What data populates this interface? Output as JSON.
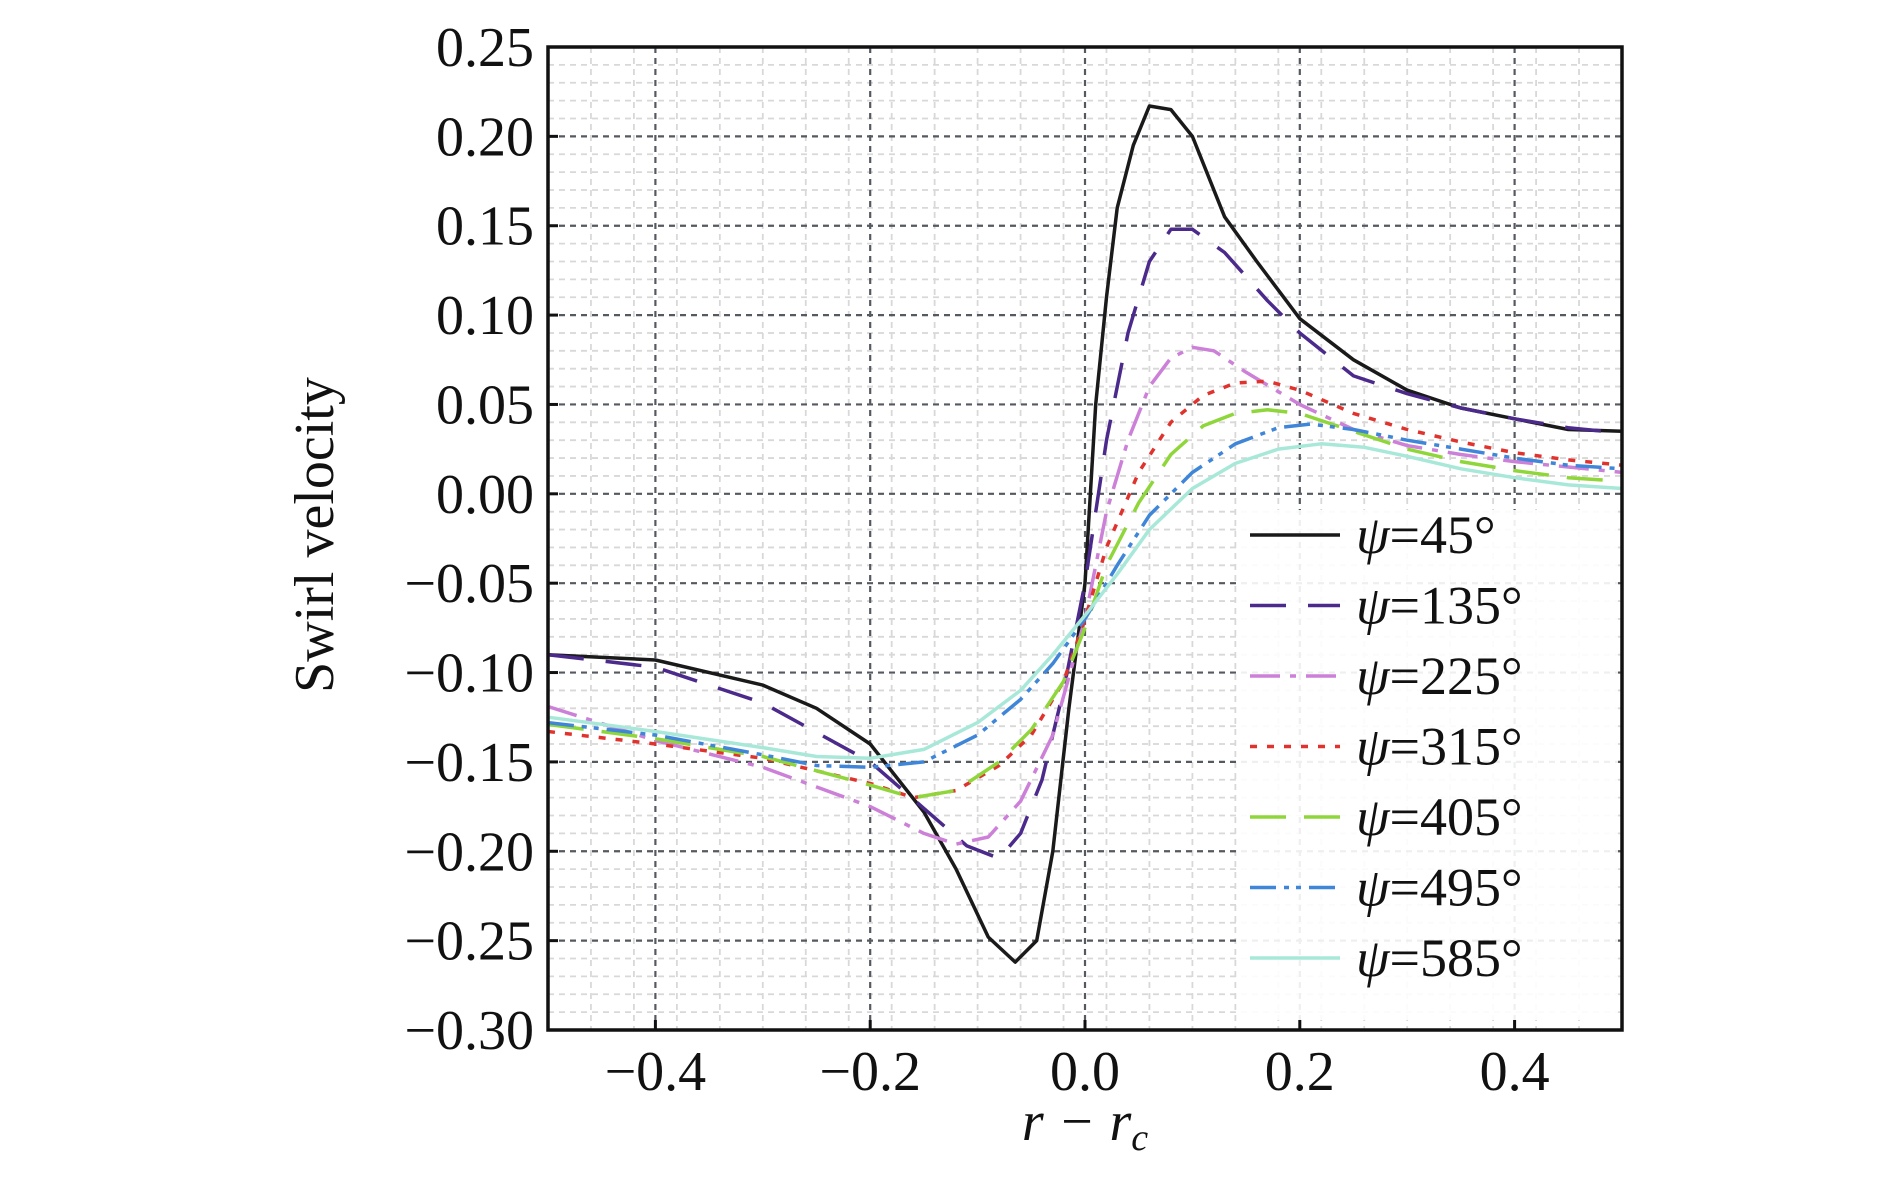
{
  "chart_data": {
    "type": "line",
    "title": "",
    "xlabel": "r − r",
    "xlabel_sub": "c",
    "ylabel": "Swirl velocity",
    "xlim": [
      -0.5,
      0.5
    ],
    "ylim": [
      -0.3,
      0.25
    ],
    "xticks": [
      -0.4,
      -0.2,
      0.0,
      0.2,
      0.4
    ],
    "xtick_labels": [
      "−0.4",
      "−0.2",
      "0.0",
      "0.2",
      "0.4"
    ],
    "yticks": [
      0.25,
      0.2,
      0.15,
      0.1,
      0.05,
      0.0,
      -0.05,
      -0.1,
      -0.15,
      -0.2,
      -0.25,
      -0.3
    ],
    "ytick_labels": [
      "0.25",
      "0.20",
      "0.15",
      "0.10",
      "0.05",
      "0.00",
      "−0.05",
      "−0.10",
      "−0.15",
      "−0.20",
      "−0.25",
      "−0.30"
    ],
    "grid": true,
    "legend_position": "lower-right",
    "series": [
      {
        "name": "ψ=45°",
        "symbol": "ψ",
        "label_rest": "=45°",
        "color": "#1a1a1a",
        "dash": "solid",
        "points": [
          [
            -0.5,
            -0.09
          ],
          [
            -0.4,
            -0.093
          ],
          [
            -0.3,
            -0.107
          ],
          [
            -0.25,
            -0.12
          ],
          [
            -0.2,
            -0.14
          ],
          [
            -0.15,
            -0.178
          ],
          [
            -0.12,
            -0.21
          ],
          [
            -0.09,
            -0.248
          ],
          [
            -0.065,
            -0.262
          ],
          [
            -0.045,
            -0.25
          ],
          [
            -0.03,
            -0.2
          ],
          [
            -0.015,
            -0.12
          ],
          [
            0.0,
            -0.05
          ],
          [
            0.01,
            0.05
          ],
          [
            0.02,
            0.11
          ],
          [
            0.03,
            0.16
          ],
          [
            0.045,
            0.195
          ],
          [
            0.06,
            0.217
          ],
          [
            0.08,
            0.215
          ],
          [
            0.1,
            0.2
          ],
          [
            0.13,
            0.155
          ],
          [
            0.16,
            0.13
          ],
          [
            0.2,
            0.098
          ],
          [
            0.25,
            0.075
          ],
          [
            0.3,
            0.058
          ],
          [
            0.35,
            0.048
          ],
          [
            0.4,
            0.042
          ],
          [
            0.45,
            0.036
          ],
          [
            0.5,
            0.035
          ]
        ]
      },
      {
        "name": "ψ=135°",
        "symbol": "ψ",
        "label_rest": "=135°",
        "color": "#4b2a8c",
        "dash": "36,22",
        "points": [
          [
            -0.5,
            -0.09
          ],
          [
            -0.4,
            -0.097
          ],
          [
            -0.3,
            -0.117
          ],
          [
            -0.2,
            -0.15
          ],
          [
            -0.15,
            -0.176
          ],
          [
            -0.11,
            -0.197
          ],
          [
            -0.08,
            -0.204
          ],
          [
            -0.06,
            -0.19
          ],
          [
            -0.04,
            -0.16
          ],
          [
            -0.02,
            -0.11
          ],
          [
            0.0,
            -0.05
          ],
          [
            0.02,
            0.03
          ],
          [
            0.04,
            0.09
          ],
          [
            0.06,
            0.13
          ],
          [
            0.08,
            0.148
          ],
          [
            0.1,
            0.148
          ],
          [
            0.13,
            0.135
          ],
          [
            0.17,
            0.108
          ],
          [
            0.2,
            0.09
          ],
          [
            0.25,
            0.066
          ],
          [
            0.3,
            0.056
          ],
          [
            0.35,
            0.048
          ],
          [
            0.4,
            0.042
          ],
          [
            0.45,
            0.037
          ],
          [
            0.5,
            0.034
          ]
        ]
      },
      {
        "name": "ψ=225°",
        "symbol": "ψ",
        "label_rest": "=225°",
        "color": "#cc80d8",
        "dash": "30,10,6,10",
        "points": [
          [
            -0.5,
            -0.119
          ],
          [
            -0.4,
            -0.138
          ],
          [
            -0.3,
            -0.153
          ],
          [
            -0.2,
            -0.175
          ],
          [
            -0.15,
            -0.19
          ],
          [
            -0.12,
            -0.196
          ],
          [
            -0.09,
            -0.192
          ],
          [
            -0.06,
            -0.172
          ],
          [
            -0.03,
            -0.135
          ],
          [
            0.0,
            -0.07
          ],
          [
            0.02,
            -0.01
          ],
          [
            0.04,
            0.03
          ],
          [
            0.06,
            0.06
          ],
          [
            0.08,
            0.076
          ],
          [
            0.1,
            0.082
          ],
          [
            0.12,
            0.08
          ],
          [
            0.15,
            0.068
          ],
          [
            0.2,
            0.05
          ],
          [
            0.25,
            0.036
          ],
          [
            0.3,
            0.027
          ],
          [
            0.35,
            0.022
          ],
          [
            0.4,
            0.018
          ],
          [
            0.45,
            0.015
          ],
          [
            0.5,
            0.012
          ]
        ]
      },
      {
        "name": "ψ=315°",
        "symbol": "ψ",
        "label_rest": "=315°",
        "color": "#e0332e",
        "dash": "7,10",
        "points": [
          [
            -0.5,
            -0.133
          ],
          [
            -0.4,
            -0.14
          ],
          [
            -0.3,
            -0.148
          ],
          [
            -0.2,
            -0.162
          ],
          [
            -0.16,
            -0.17
          ],
          [
            -0.12,
            -0.166
          ],
          [
            -0.08,
            -0.152
          ],
          [
            -0.05,
            -0.135
          ],
          [
            -0.02,
            -0.105
          ],
          [
            0.0,
            -0.07
          ],
          [
            0.02,
            -0.03
          ],
          [
            0.05,
            0.012
          ],
          [
            0.08,
            0.04
          ],
          [
            0.11,
            0.055
          ],
          [
            0.14,
            0.062
          ],
          [
            0.17,
            0.063
          ],
          [
            0.2,
            0.058
          ],
          [
            0.25,
            0.045
          ],
          [
            0.3,
            0.036
          ],
          [
            0.35,
            0.029
          ],
          [
            0.4,
            0.023
          ],
          [
            0.45,
            0.019
          ],
          [
            0.5,
            0.016
          ]
        ]
      },
      {
        "name": "ψ=405°",
        "symbol": "ψ",
        "label_rest": "=405°",
        "color": "#8fd63a",
        "dash": "36,18",
        "points": [
          [
            -0.5,
            -0.129
          ],
          [
            -0.4,
            -0.137
          ],
          [
            -0.3,
            -0.147
          ],
          [
            -0.2,
            -0.163
          ],
          [
            -0.16,
            -0.17
          ],
          [
            -0.12,
            -0.166
          ],
          [
            -0.08,
            -0.15
          ],
          [
            -0.05,
            -0.132
          ],
          [
            -0.02,
            -0.105
          ],
          [
            0.0,
            -0.075
          ],
          [
            0.02,
            -0.04
          ],
          [
            0.05,
            -0.005
          ],
          [
            0.08,
            0.022
          ],
          [
            0.11,
            0.038
          ],
          [
            0.14,
            0.045
          ],
          [
            0.17,
            0.047
          ],
          [
            0.2,
            0.045
          ],
          [
            0.25,
            0.035
          ],
          [
            0.3,
            0.025
          ],
          [
            0.35,
            0.018
          ],
          [
            0.4,
            0.013
          ],
          [
            0.45,
            0.009
          ],
          [
            0.5,
            0.007
          ]
        ]
      },
      {
        "name": "ψ=495°",
        "symbol": "ψ",
        "label_rest": "=495°",
        "color": "#3f86d8",
        "dash": "26,8,5,7,5,8",
        "points": [
          [
            -0.5,
            -0.128
          ],
          [
            -0.4,
            -0.135
          ],
          [
            -0.3,
            -0.146
          ],
          [
            -0.25,
            -0.152
          ],
          [
            -0.2,
            -0.153
          ],
          [
            -0.15,
            -0.15
          ],
          [
            -0.1,
            -0.135
          ],
          [
            -0.06,
            -0.115
          ],
          [
            -0.03,
            -0.095
          ],
          [
            0.0,
            -0.07
          ],
          [
            0.03,
            -0.04
          ],
          [
            0.06,
            -0.012
          ],
          [
            0.1,
            0.012
          ],
          [
            0.14,
            0.028
          ],
          [
            0.18,
            0.037
          ],
          [
            0.21,
            0.039
          ],
          [
            0.25,
            0.036
          ],
          [
            0.3,
            0.03
          ],
          [
            0.35,
            0.025
          ],
          [
            0.4,
            0.02
          ],
          [
            0.45,
            0.016
          ],
          [
            0.5,
            0.014
          ]
        ]
      },
      {
        "name": "ψ=585°",
        "symbol": "ψ",
        "label_rest": "=585°",
        "color": "#a8e8d8",
        "dash": "solid",
        "points": [
          [
            -0.5,
            -0.125
          ],
          [
            -0.4,
            -0.133
          ],
          [
            -0.3,
            -0.142
          ],
          [
            -0.25,
            -0.147
          ],
          [
            -0.2,
            -0.148
          ],
          [
            -0.15,
            -0.143
          ],
          [
            -0.1,
            -0.128
          ],
          [
            -0.06,
            -0.11
          ],
          [
            -0.03,
            -0.09
          ],
          [
            0.0,
            -0.068
          ],
          [
            0.03,
            -0.045
          ],
          [
            0.06,
            -0.02
          ],
          [
            0.1,
            0.003
          ],
          [
            0.14,
            0.017
          ],
          [
            0.18,
            0.025
          ],
          [
            0.22,
            0.028
          ],
          [
            0.26,
            0.026
          ],
          [
            0.3,
            0.021
          ],
          [
            0.35,
            0.014
          ],
          [
            0.4,
            0.009
          ],
          [
            0.45,
            0.005
          ],
          [
            0.5,
            0.003
          ]
        ]
      }
    ]
  }
}
